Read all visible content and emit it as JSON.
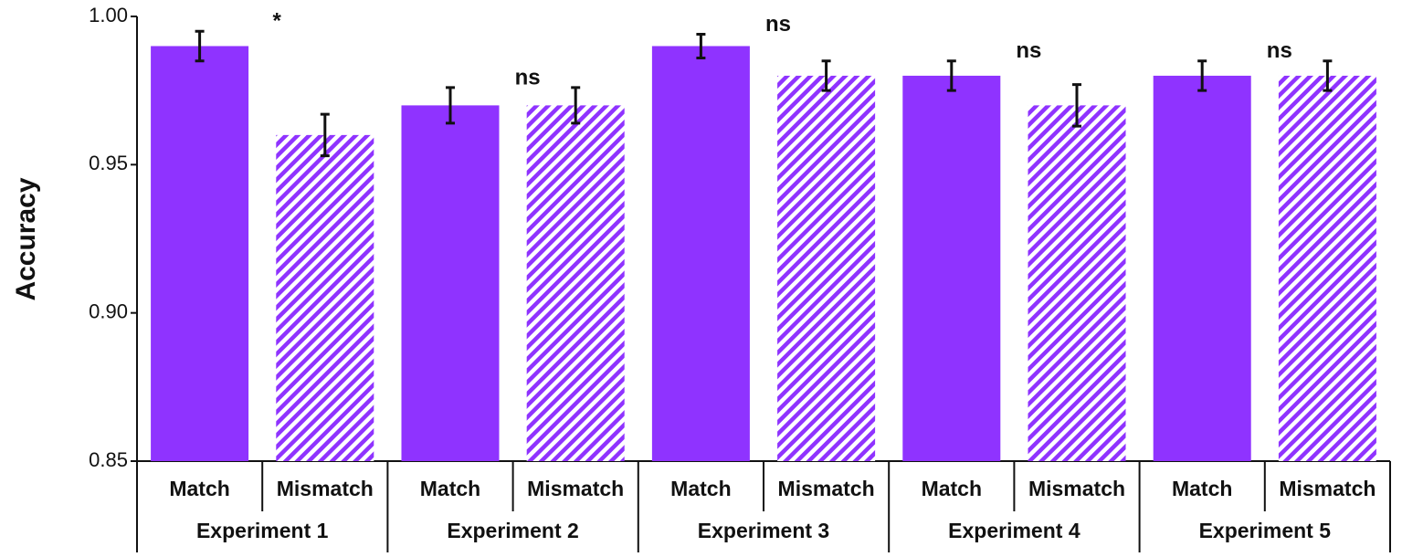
{
  "chart_data": {
    "type": "bar",
    "y_label": "Accuracy",
    "categories": [
      "Experiment 1",
      "Experiment 2",
      "Experiment 3",
      "Experiment 4",
      "Experiment 5"
    ],
    "series": [
      {
        "name": "Match",
        "color": "#8f33ff",
        "hatch": false,
        "values": [
          0.99,
          0.97,
          0.99,
          0.98,
          0.98
        ],
        "errors": [
          0.005,
          0.006,
          0.004,
          0.005,
          0.005
        ]
      },
      {
        "name": "Mismatch",
        "color": "#8f33ff",
        "hatch": true,
        "values": [
          0.96,
          0.97,
          0.98,
          0.97,
          0.98
        ],
        "errors": [
          0.007,
          0.006,
          0.005,
          0.007,
          0.005
        ]
      }
    ],
    "significance": [
      "*",
      "ns",
      "ns",
      "ns",
      "ns"
    ],
    "ylim": [
      0.85,
      1.0
    ],
    "yticks": [
      0.85,
      {
        "value": 0.9,
        "label": "0.90"
      },
      0.95,
      {
        "value": 1.0,
        "label": "1.00"
      }
    ],
    "grid": false
  }
}
